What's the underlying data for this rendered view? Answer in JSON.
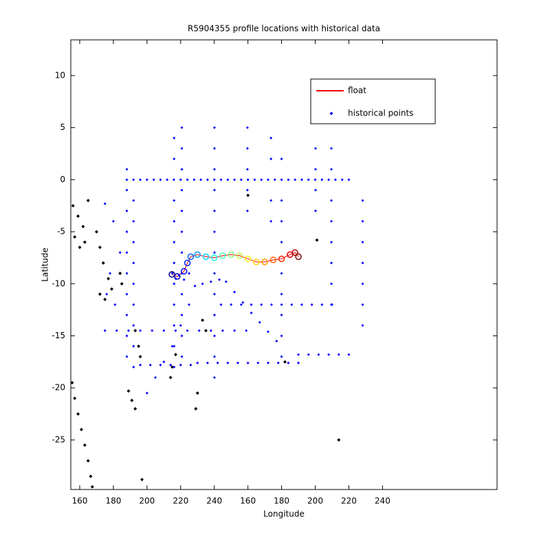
{
  "chart_data": {
    "type": "scatter",
    "title": "R5904355 profile locations with historical data",
    "xlabel": "Longitude",
    "ylabel": "Latitude",
    "xlim": [
      154.7,
      408.1
    ],
    "ylim": [
      -29.76,
      13.43
    ],
    "xticks": [
      160,
      180,
      200,
      220,
      240,
      {
        "value": 260,
        "label": "160"
      },
      {
        "value": 280,
        "label": "180"
      },
      {
        "value": 300,
        "label": "200"
      },
      {
        "value": 320,
        "label": "220"
      },
      {
        "value": 340,
        "label": "240"
      }
    ],
    "yticks": [
      10,
      5,
      0,
      -5,
      -10,
      -15,
      -20,
      -25
    ],
    "legend": "upper right",
    "series": [
      {
        "name": "float",
        "color": "#ff0000",
        "x": [
          214.8,
          218,
          222,
          224,
          226,
          230,
          235,
          240,
          245,
          250,
          255,
          260,
          265,
          270,
          275,
          280,
          285,
          288,
          290
        ],
        "y": [
          -9.1,
          -9.3,
          -8.8,
          -8.0,
          -7.4,
          -7.2,
          -7.4,
          -7.5,
          -7.3,
          -7.2,
          -7.3,
          -7.6,
          -7.9,
          -7.9,
          -7.7,
          -7.6,
          -7.2,
          -7.0,
          -7.4
        ]
      },
      {
        "name": "historical points",
        "color": "#0000ff",
        "x": [
          188,
          192,
          196,
          200,
          204,
          208,
          212,
          216,
          220,
          224,
          228,
          232,
          236,
          240,
          244,
          248,
          252,
          256,
          260,
          264,
          268,
          272,
          276,
          280,
          284,
          288,
          292,
          296,
          300,
          304,
          308,
          312,
          316,
          320,
          216.1,
          216.1,
          216.1,
          216.1,
          216.1,
          216.1,
          216.1,
          216.1,
          216.1,
          216.1,
          216.1,
          220.7,
          220.7,
          220.7,
          220.7,
          220.7,
          220.7,
          220.7,
          220.7,
          220.7,
          220.7,
          220.7,
          220.7,
          240.1,
          240.1,
          240.1,
          240.1,
          240.1,
          240.1,
          240.1,
          240.1,
          240.1,
          240.1,
          240.1,
          240.1,
          240.1,
          259.7,
          259.7,
          259.7,
          259.7,
          259.7,
          273.7,
          273.7,
          273.7,
          273.7,
          280,
          280,
          280,
          280,
          280,
          280,
          280,
          280,
          280,
          300.2,
          300.2,
          300.2,
          300.2,
          309.6,
          309.6,
          309.6,
          309.6,
          309.6,
          309.6,
          309.6,
          309.6,
          328.2,
          328.2,
          328.2,
          328.2,
          328.2,
          328.2,
          328.2,
          188,
          188,
          188,
          188,
          188,
          188,
          188,
          188,
          188,
          188,
          192,
          192,
          192,
          192,
          192,
          192,
          192,
          192,
          192,
          175,
          182,
          189,
          196,
          203,
          210,
          217,
          224,
          231,
          238,
          245,
          252,
          259,
          230,
          236,
          242,
          248,
          254,
          260,
          266,
          272,
          278,
          284,
          290,
          196,
          202,
          208,
          214,
          220,
          226,
          290,
          296,
          302,
          308,
          314,
          320,
          244,
          250,
          256,
          262,
          268,
          274,
          280,
          286,
          292,
          298,
          304,
          310,
          228.5,
          233,
          238,
          243,
          247,
          252,
          257,
          262,
          267,
          272,
          277,
          200,
          205,
          210,
          215,
          220,
          225,
          175,
          180,
          184,
          178,
          181,
          176,
          215,
          217,
          219,
          222,
          225
        ],
        "y": [
          0,
          0,
          0,
          0,
          0,
          0,
          0,
          0,
          0,
          0,
          0,
          0,
          0,
          0,
          0,
          0,
          0,
          0,
          0,
          0,
          0,
          0,
          0,
          0,
          0,
          0,
          0,
          0,
          0,
          0,
          0,
          0,
          0,
          0,
          4,
          2,
          -2,
          -4,
          -6,
          -8,
          -10,
          -12,
          -14,
          -16,
          -18,
          5,
          3,
          1,
          -1,
          -3,
          -5,
          -7,
          -9,
          -11,
          -13,
          -15,
          -17,
          5,
          3,
          1,
          -1,
          -3,
          -5,
          -7,
          -9,
          -11,
          -13,
          -15,
          -17,
          -19,
          5,
          3,
          1,
          -1,
          -3,
          4,
          2,
          -2,
          -4,
          2,
          -2,
          -4,
          -6,
          -9,
          -11,
          -13,
          -15,
          -17,
          3,
          1,
          -1,
          -3,
          3,
          1,
          -2,
          -4,
          -6,
          -8,
          -10,
          -12,
          -2,
          -4,
          -6,
          -8,
          -10,
          -12,
          -14,
          1,
          -1,
          -3,
          -5,
          -7,
          -9,
          -11,
          -13,
          -15,
          -17,
          -2,
          -4,
          -6,
          -8,
          -10,
          -12,
          -14,
          -16,
          -18,
          -14.5,
          -14.5,
          -14.5,
          -14.5,
          -14.5,
          -14.5,
          -14.5,
          -14.5,
          -14.5,
          -14.5,
          -14.5,
          -14.5,
          -14.5,
          -17.6,
          -17.6,
          -17.6,
          -17.6,
          -17.6,
          -17.6,
          -17.6,
          -17.6,
          -17.6,
          -17.6,
          -17.6,
          -17.8,
          -17.8,
          -17.8,
          -17.8,
          -17.8,
          -17.8,
          -16.8,
          -16.8,
          -16.8,
          -16.8,
          -16.8,
          -16.8,
          -12,
          -12,
          -12,
          -12,
          -12,
          -12,
          -12,
          -12,
          -12,
          -12,
          -12,
          -12,
          -10.2,
          -10,
          -9.8,
          -9.6,
          -9.8,
          -10.8,
          -11.8,
          -12.8,
          -13.7,
          -14.6,
          -15.5,
          -20.5,
          -19,
          -17.5,
          -16,
          -14,
          -12,
          -2.3,
          -4,
          -7,
          -9,
          -12,
          -11,
          -9.0,
          -9.5,
          -9.2,
          -9.6,
          -9.0
        ]
      }
    ],
    "land": {
      "color": "#000000",
      "x": [
        155.5,
        157,
        159,
        161,
        163,
        165,
        166.5,
        167.5,
        156,
        159,
        162,
        165,
        163,
        160,
        157,
        170,
        172,
        174,
        177,
        179,
        172,
        175,
        184,
        185,
        193,
        195,
        196,
        189,
        191,
        193,
        217,
        215,
        214,
        230,
        229,
        233,
        235,
        282,
        301,
        260,
        197,
        314
      ],
      "y": [
        -19.5,
        -21,
        -22.5,
        -24,
        -25.5,
        -27,
        -28.5,
        -29.5,
        -2.5,
        -3.5,
        -4.5,
        -2.0,
        -6,
        -6.5,
        -5.5,
        -5,
        -6.5,
        -8,
        -9.5,
        -10.5,
        -11,
        -11.5,
        -9,
        -10,
        -14.5,
        -16,
        -17,
        -20.3,
        -21.2,
        -22,
        -16.8,
        -18,
        -19,
        -20.5,
        -22,
        -13.5,
        -14.5,
        -17.5,
        -5.8,
        -1.5,
        -28.8,
        -25
      ]
    }
  }
}
